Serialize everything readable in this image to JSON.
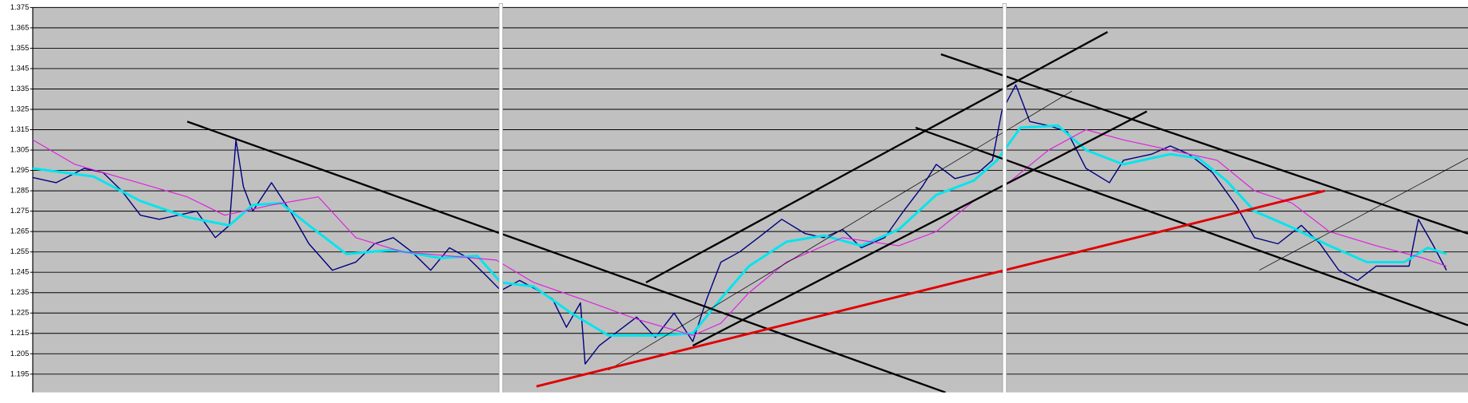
{
  "chart_data": {
    "type": "line",
    "xlim": [
      35,
      1568
    ],
    "ylim": [
      1.186,
      1.375
    ],
    "yticks": [
      1.195,
      1.205,
      1.215,
      1.225,
      1.235,
      1.245,
      1.255,
      1.265,
      1.275,
      1.285,
      1.295,
      1.305,
      1.315,
      1.325,
      1.335,
      1.345,
      1.355,
      1.365,
      1.375
    ],
    "grid": true,
    "series": [
      {
        "color": "#000080",
        "width": 1.2,
        "x": [
          35,
          60,
          90,
          110,
          130,
          150,
          170,
          190,
          210,
          230,
          245,
          252,
          260,
          270,
          290,
          310,
          330,
          355,
          380,
          400,
          420,
          440,
          460,
          480,
          500,
          520,
          535,
          555,
          575,
          590,
          605,
          620,
          625,
          640,
          660,
          680,
          700,
          720,
          740,
          755,
          770,
          790,
          810,
          835,
          860,
          880,
          900,
          920,
          945,
          965,
          985,
          1000,
          1020,
          1045,
          1060,
          1070,
          1085,
          1100,
          1120,
          1140,
          1160,
          1185,
          1200,
          1230,
          1250,
          1270,
          1295,
          1320,
          1340,
          1365,
          1390,
          1410,
          1430,
          1450,
          1470,
          1490,
          1505,
          1515,
          1530,
          1545
        ],
        "values": [
          1.2915,
          1.289,
          1.296,
          1.294,
          1.285,
          1.273,
          1.271,
          1.273,
          1.275,
          1.262,
          1.268,
          1.31,
          1.287,
          1.275,
          1.289,
          1.275,
          1.259,
          1.246,
          1.25,
          1.259,
          1.262,
          1.255,
          1.246,
          1.257,
          1.252,
          1.243,
          1.236,
          1.241,
          1.236,
          1.232,
          1.218,
          1.23,
          1.2,
          1.209,
          1.216,
          1.223,
          1.213,
          1.225,
          1.211,
          1.232,
          1.25,
          1.255,
          1.262,
          1.271,
          1.264,
          1.262,
          1.266,
          1.257,
          1.262,
          1.275,
          1.287,
          1.298,
          1.291,
          1.294,
          1.3,
          1.324,
          1.337,
          1.319,
          1.317,
          1.314,
          1.296,
          1.289,
          1.3,
          1.303,
          1.307,
          1.303,
          1.294,
          1.278,
          1.262,
          1.259,
          1.268,
          1.259,
          1.246,
          1.241,
          1.248,
          1.248,
          1.248,
          1.271,
          1.259,
          1.246
        ]
      },
      {
        "color": "#00e5ee",
        "width": 2.5,
        "x": [
          35,
          100,
          150,
          200,
          245,
          270,
          300,
          330,
          370,
          420,
          470,
          510,
          535,
          570,
          610,
          650,
          700,
          740,
          770,
          800,
          840,
          880,
          920,
          960,
          1000,
          1040,
          1065,
          1090,
          1130,
          1160,
          1200,
          1250,
          1280,
          1310,
          1340,
          1380,
          1420,
          1460,
          1500,
          1525,
          1545
        ],
        "values": [
          1.296,
          1.292,
          1.28,
          1.272,
          1.268,
          1.278,
          1.279,
          1.268,
          1.254,
          1.256,
          1.252,
          1.253,
          1.24,
          1.238,
          1.225,
          1.214,
          1.214,
          1.215,
          1.232,
          1.248,
          1.26,
          1.263,
          1.258,
          1.266,
          1.283,
          1.29,
          1.3,
          1.316,
          1.317,
          1.305,
          1.298,
          1.303,
          1.301,
          1.29,
          1.275,
          1.267,
          1.258,
          1.25,
          1.25,
          1.257,
          1.254
        ]
      },
      {
        "color": "#e020e0",
        "width": 1,
        "x": [
          35,
          80,
          140,
          200,
          240,
          290,
          340,
          380,
          430,
          480,
          530,
          570,
          620,
          680,
          740,
          770,
          800,
          840,
          900,
          960,
          1000,
          1040,
          1080,
          1120,
          1160,
          1200,
          1250,
          1300,
          1340,
          1380,
          1420,
          1470,
          1520,
          1545
        ],
        "values": [
          1.31,
          1.298,
          1.29,
          1.282,
          1.273,
          1.278,
          1.282,
          1.262,
          1.255,
          1.253,
          1.251,
          1.24,
          1.232,
          1.222,
          1.214,
          1.22,
          1.235,
          1.25,
          1.262,
          1.258,
          1.265,
          1.28,
          1.29,
          1.305,
          1.315,
          1.31,
          1.305,
          1.3,
          1.285,
          1.279,
          1.265,
          1.258,
          1.252,
          1.248
        ]
      },
      {
        "color": "#000000",
        "width": 2,
        "x": [
          200,
          1010
        ],
        "values": [
          1.319,
          1.186
        ]
      },
      {
        "color": "#000000",
        "width": 2,
        "x": [
          690,
          1183
        ],
        "values": [
          1.24,
          1.363
        ]
      },
      {
        "color": "#000000",
        "width": 2,
        "x": [
          740,
          1225
        ],
        "values": [
          1.209,
          1.324
        ]
      },
      {
        "color": "#000000",
        "width": 2,
        "x": [
          1005,
          1568
        ],
        "values": [
          1.352,
          1.264
        ]
      },
      {
        "color": "#000000",
        "width": 2,
        "x": [
          978,
          1568
        ],
        "values": [
          1.316,
          1.219
        ]
      },
      {
        "color": "#000000",
        "width": 0.6,
        "x": [
          650,
          1145
        ],
        "values": [
          1.197,
          1.334
        ]
      },
      {
        "color": "#000000",
        "width": 0.6,
        "x": [
          1345,
          1568
        ],
        "values": [
          1.246,
          1.301
        ]
      },
      {
        "color": "#e00000",
        "width": 2.5,
        "x": [
          573,
          1415
        ],
        "values": [
          1.189,
          1.285
        ]
      }
    ]
  }
}
